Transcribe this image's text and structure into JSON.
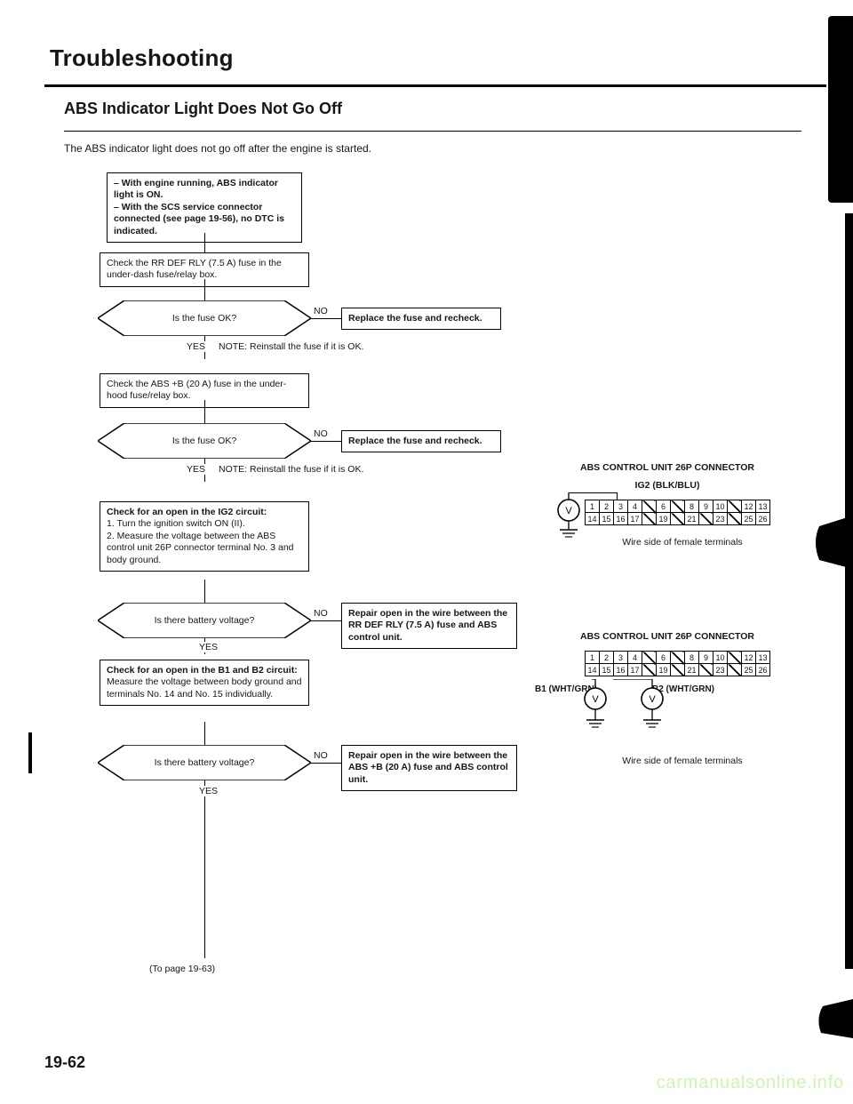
{
  "page": {
    "title": "Troubleshooting",
    "section_title": "ABS Indicator Light Does Not Go Off",
    "section_sub": "The ABS indicator light does not go off after the engine is started.",
    "page_number": "19-62",
    "watermark": "carmanualsonline.info"
  },
  "flow": {
    "start": "– With engine running, ABS indicator light is ON.\n– With the SCS service connector connected (see page 19-56), no DTC is indicated.",
    "check_rr": "Check the RR DEF RLY (7.5 A) fuse in the under-dash fuse/relay box.",
    "d1": "Is the fuse OK?",
    "d1_yes": "YES",
    "d1_no": "NO",
    "note1": "NOTE:  Reinstall the fuse if it is OK.",
    "r1": "Replace the fuse and recheck.",
    "check_abs": "Check the ABS +B (20 A) fuse in the under-hood fuse/relay box.",
    "d2": "Is the fuse OK?",
    "d2_yes": "YES",
    "d2_no": "NO",
    "note2": "NOTE:  Reinstall the fuse if it is OK.",
    "r2": "Replace the fuse and recheck.",
    "check_ig2": "Check for an open in the IG2 circuit:\n1. Turn the ignition switch ON (II).\n2. Measure the voltage between the ABS control unit 26P connector terminal No. 3 and body ground.",
    "d3": "Is there battery voltage?",
    "d3_yes": "YES",
    "d3_no": "NO",
    "r3": "Repair open in the wire between the RR DEF RLY (7.5 A) fuse and ABS control unit.",
    "check_b1b2": "Check for an open in the B1 and B2 circuit:\nMeasure the voltage between body ground and terminals No. 14 and No. 15 individually.",
    "d4": "Is there battery voltage?",
    "d4_yes": "YES",
    "d4_no": "NO",
    "r4": "Repair open in the wire between the ABS +B (20 A) fuse and ABS control unit.",
    "to_page": "(To page 19-63)"
  },
  "connector": {
    "title": "ABS CONTROL UNIT 26P CONNECTOR",
    "ig2": "IG2 (BLK/BLU)",
    "row1": [
      "1",
      "2",
      "3",
      "4",
      "",
      "6",
      "",
      "8",
      "9",
      "10",
      "",
      "12",
      "13"
    ],
    "row2": [
      "14",
      "15",
      "16",
      "17",
      "",
      "19",
      "",
      "21",
      "",
      "23",
      "",
      "25",
      "26"
    ],
    "slashTop": [
      4,
      6,
      10
    ],
    "slashBot": [
      4,
      6,
      8,
      10
    ],
    "wire_caption": "Wire side of female terminals",
    "b1": "B1 (WHT/GRN)",
    "b2": "B2 (WHT/GRN)"
  },
  "style": {
    "text_color": "#161616",
    "border_color": "#000000",
    "bg": "#ffffff",
    "watermark_color": "#a7f06c"
  }
}
